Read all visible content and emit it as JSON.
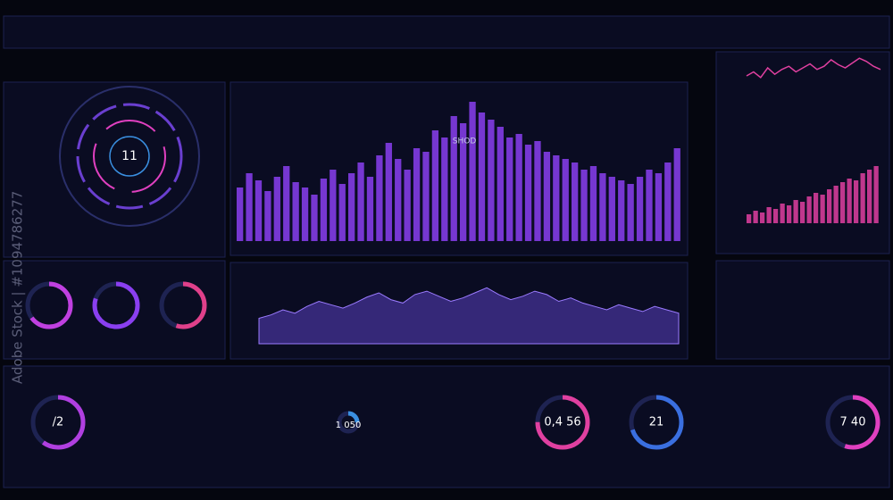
{
  "watermark": "Adobe Stock | #1094786277",
  "radar_readout": "11",
  "main_chart": {
    "type": "bar",
    "label": "SHOD",
    "values": [
      30,
      38,
      34,
      28,
      36,
      42,
      33,
      30,
      26,
      35,
      40,
      32,
      38,
      44,
      36,
      48,
      55,
      46,
      40,
      52,
      50,
      62,
      58,
      70,
      66,
      78,
      72,
      68,
      64,
      58,
      60,
      54,
      56,
      50,
      48,
      46,
      44,
      40,
      42,
      38,
      36,
      34,
      32,
      36,
      40,
      38,
      44,
      52
    ]
  },
  "bottom_chart": {
    "type": "area",
    "values": [
      30,
      34,
      40,
      36,
      44,
      50,
      46,
      42,
      48,
      55,
      60,
      52,
      48,
      58,
      62,
      56,
      50,
      54,
      60,
      66,
      58,
      52,
      56,
      62,
      58,
      50,
      54,
      48,
      44,
      40,
      46,
      42,
      38,
      44,
      40,
      36
    ]
  },
  "right_charts": [
    {
      "type": "line",
      "values": [
        50,
        55,
        48,
        60,
        52,
        58,
        62,
        55,
        60,
        65,
        58,
        62,
        70,
        64,
        60,
        66,
        72,
        68,
        62,
        58
      ]
    },
    {
      "type": "bar",
      "values": [
        10,
        14,
        12,
        18,
        16,
        22,
        20,
        26,
        24,
        30,
        34,
        32,
        38,
        42,
        46,
        50,
        48,
        56,
        60,
        64
      ]
    }
  ],
  "side_gauges": [
    65,
    80,
    55
  ],
  "bottom_gauges": [
    {
      "label": "/2",
      "value": 60
    },
    {
      "label": "1 050",
      "value": 25
    },
    {
      "label": "0,4 56",
      "value": 75
    },
    {
      "label": "21",
      "value": 70
    },
    {
      "label": "7 40",
      "value": 55
    }
  ]
}
